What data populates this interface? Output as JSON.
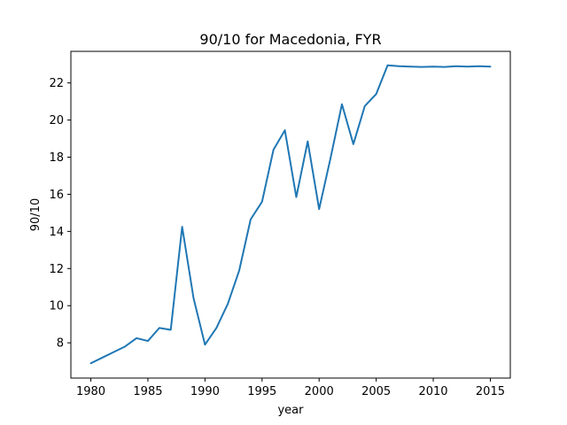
{
  "chart_data": {
    "type": "line",
    "title": "90/10 for Macedonia, FYR",
    "xlabel": "year",
    "ylabel": "90/10",
    "xlim": [
      1978.25,
      2016.75
    ],
    "ylim": [
      6.1,
      23.7
    ],
    "x_ticks": [
      1980,
      1985,
      1990,
      1995,
      2000,
      2005,
      2010,
      2015
    ],
    "y_ticks": [
      8,
      10,
      12,
      14,
      16,
      18,
      20,
      22
    ],
    "grid": false,
    "line_color": "#1f77b4",
    "series": [
      {
        "x": [
          1980,
          1981,
          1982,
          1983,
          1984,
          1985,
          1986,
          1987,
          1988,
          1989,
          1990,
          1991,
          1992,
          1993,
          1994,
          1995,
          1996,
          1997,
          1998,
          1999,
          2000,
          2001,
          2002,
          2003,
          2004,
          2005,
          2006,
          2007,
          2008,
          2009,
          2010,
          2011,
          2012,
          2013,
          2014,
          2015
        ],
        "values": [
          6.9,
          7.2,
          7.5,
          7.8,
          8.25,
          8.1,
          8.8,
          8.7,
          14.25,
          10.4,
          7.9,
          8.8,
          10.1,
          11.9,
          14.65,
          15.6,
          18.4,
          19.45,
          15.85,
          18.85,
          15.2,
          17.95,
          20.85,
          18.7,
          20.75,
          21.4,
          22.95,
          22.9,
          22.88,
          22.86,
          22.88,
          22.86,
          22.9,
          22.88,
          22.9,
          22.88
        ]
      }
    ]
  }
}
